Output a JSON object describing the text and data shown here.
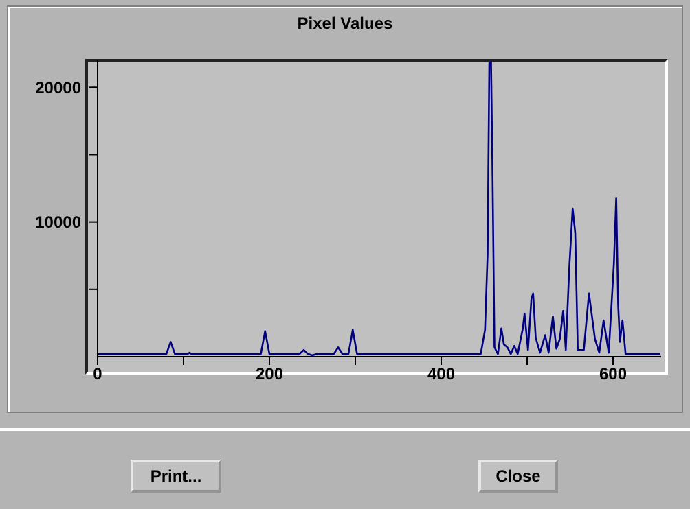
{
  "chart_data": {
    "type": "line",
    "title": "Pixel Values",
    "color": "#000080",
    "marker": "none",
    "grid": false,
    "legend": false,
    "x": [
      0,
      80,
      85,
      90,
      105,
      107,
      109,
      190,
      195,
      200,
      235,
      240,
      245,
      250,
      255,
      275,
      280,
      285,
      292,
      297,
      302,
      446,
      451,
      454,
      456,
      458,
      459.7,
      462,
      466,
      470,
      473,
      477,
      481,
      485,
      489,
      495,
      497,
      501,
      505,
      507,
      510,
      515,
      521,
      525,
      530,
      534,
      538,
      542,
      545,
      549,
      553,
      556,
      559,
      566,
      572,
      579,
      584,
      589,
      595,
      601,
      603.7,
      606,
      608,
      611,
      614.6,
      655
    ],
    "values": [
      200,
      200,
      1100,
      200,
      200,
      300,
      200,
      200,
      1900,
      200,
      200,
      500,
      200,
      100,
      200,
      200,
      700,
      200,
      200,
      2000,
      200,
      200,
      2000,
      7600,
      21800,
      21900,
      13700,
      700,
      200,
      2100,
      900,
      700,
      200,
      800,
      200,
      2100,
      3200,
      500,
      4300,
      4700,
      1400,
      300,
      1600,
      300,
      3000,
      600,
      1300,
      3400,
      500,
      6500,
      11000,
      9200,
      500,
      500,
      4700,
      1300,
      300,
      2700,
      300,
      6900,
      11800,
      3800,
      1100,
      2700,
      200,
      200
    ],
    "xlim": [
      0,
      656
    ],
    "ylim": [
      0,
      22000
    ],
    "xticks": [
      0,
      {
        "value": 100,
        "label": null
      },
      200,
      {
        "value": 300,
        "label": null
      },
      400,
      {
        "value": 500,
        "label": null
      },
      600
    ],
    "yticks": [
      {
        "value": 5000,
        "label": null
      },
      10000,
      {
        "value": 15000,
        "label": null
      },
      20000
    ],
    "annotations": [
      "Print...",
      "Close"
    ]
  }
}
